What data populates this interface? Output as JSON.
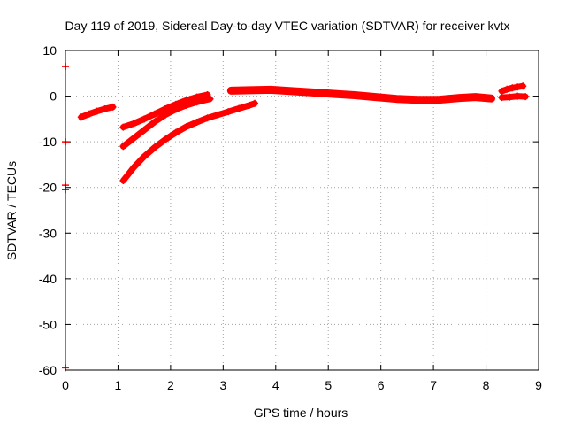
{
  "chart_data": {
    "type": "scatter",
    "title": "Day 119 of 2019, Sidereal Day-to-day VTEC variation (SDTVAR) for receiver kvtx",
    "xlabel": "GPS time / hours",
    "ylabel": "SDTVAR / TECUs",
    "xlim": [
      0,
      9
    ],
    "ylim": [
      -60,
      10
    ],
    "x_ticks": [
      "0",
      "1",
      "2",
      "3",
      "4",
      "5",
      "6",
      "7",
      "8",
      "9"
    ],
    "y_ticks": [
      "10",
      "0",
      "-10",
      "-20",
      "-30",
      "-40",
      "-50",
      "-60"
    ],
    "grid": true,
    "grid_style": "dotted",
    "marker": "plus",
    "series_color": "#ff0000",
    "series": [
      {
        "x": [
          0.0,
          0.0,
          0.0,
          0.0,
          0.0
        ],
        "y": [
          6.5,
          -10.0,
          -19.5,
          -20.5,
          -59.5
        ]
      },
      {
        "x": [
          0.3,
          0.45,
          0.6,
          0.75,
          0.9
        ],
        "y": [
          -4.6,
          -3.9,
          -3.3,
          -2.8,
          -2.4
        ]
      },
      {
        "x": [
          1.1,
          1.3,
          1.5,
          1.7,
          1.9,
          2.1,
          2.3,
          2.5,
          2.7
        ],
        "y": [
          -6.8,
          -6.0,
          -5.0,
          -3.9,
          -2.8,
          -1.8,
          -0.9,
          -0.2,
          0.3
        ]
      },
      {
        "x": [
          1.1,
          1.3,
          1.5,
          1.7,
          1.9,
          2.1,
          2.3,
          2.5,
          2.75
        ],
        "y": [
          -11.0,
          -9.2,
          -7.4,
          -5.6,
          -4.1,
          -2.9,
          -2.0,
          -1.3,
          -0.6
        ]
      },
      {
        "x": [
          1.1,
          1.3,
          1.5,
          1.7,
          1.9,
          2.1,
          2.3,
          2.5,
          2.7,
          2.9,
          3.1,
          3.3,
          3.5,
          3.6
        ],
        "y": [
          -18.5,
          -15.6,
          -13.2,
          -11.2,
          -9.5,
          -8.0,
          -6.7,
          -5.7,
          -4.8,
          -4.1,
          -3.4,
          -2.7,
          -2.0,
          -1.6
        ]
      },
      {
        "x": [
          3.15,
          3.5,
          3.9,
          4.3,
          4.7,
          5.1,
          5.5,
          5.9,
          6.3,
          6.7,
          7.1,
          7.5,
          7.8,
          8.1
        ],
        "y": [
          1.2,
          1.3,
          1.4,
          1.1,
          0.8,
          0.5,
          0.2,
          -0.2,
          -0.6,
          -0.8,
          -0.8,
          -0.4,
          -0.2,
          -0.5
        ]
      },
      {
        "x": [
          8.3,
          8.4,
          8.5,
          8.6,
          8.7
        ],
        "y": [
          1.1,
          1.5,
          1.8,
          2.0,
          2.2
        ]
      },
      {
        "x": [
          8.3,
          8.45,
          8.6,
          8.75
        ],
        "y": [
          -0.3,
          -0.2,
          0.0,
          -0.1
        ]
      }
    ]
  }
}
